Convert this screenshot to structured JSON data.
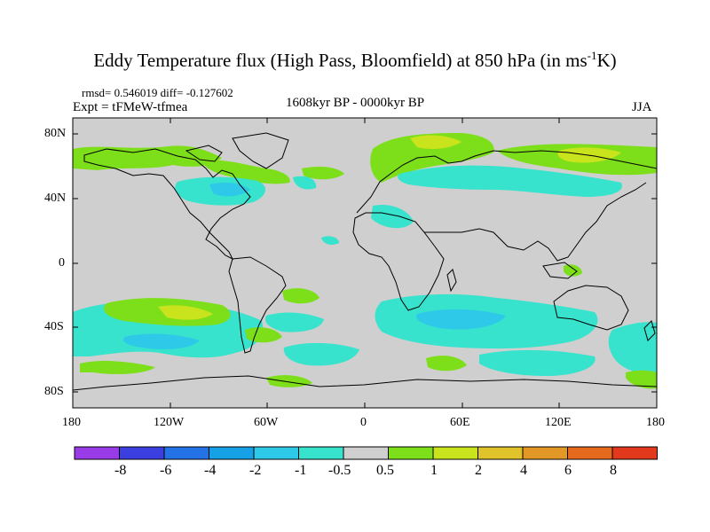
{
  "title": {
    "main": "Eddy Temperature flux (High Pass, Bloomfield) at 850 hPa (in ms",
    "superscript": "-1",
    "end": "K)"
  },
  "stats_line": "rmsd= 0.546019 diff= -0.127602",
  "expt_line": "Expt = tFMeW-tfmea",
  "period_line": "1608kyr BP - 0000kyr BP",
  "season": "JJA",
  "axes": {
    "lat_labels": [
      "80N",
      "40N",
      "0",
      "40S",
      "80S"
    ],
    "lon_labels": [
      "180",
      "120W",
      "60W",
      "0",
      "60E",
      "120E",
      "180"
    ]
  },
  "colorbar": {
    "labels": [
      "-8",
      "-6",
      "-4",
      "-2",
      "-1",
      "-0.5",
      "0.5",
      "1",
      "2",
      "4",
      "6",
      "8"
    ],
    "colors": [
      "#9a3be8",
      "#3b3fe0",
      "#2372e6",
      "#16a0e6",
      "#2ec9e8",
      "#37e3cc",
      "#cfcfcf",
      "#7ddf1a",
      "#c9e31c",
      "#e0c22a",
      "#e39726",
      "#e56a1e",
      "#e2391c"
    ]
  },
  "field_colors": {
    "background": "#cfcfcf",
    "light_positive": "#7ddf1a",
    "mid_positive": "#c9e31c",
    "light_negative": "#37e3cc",
    "mid_negative": "#2ec9e8"
  }
}
